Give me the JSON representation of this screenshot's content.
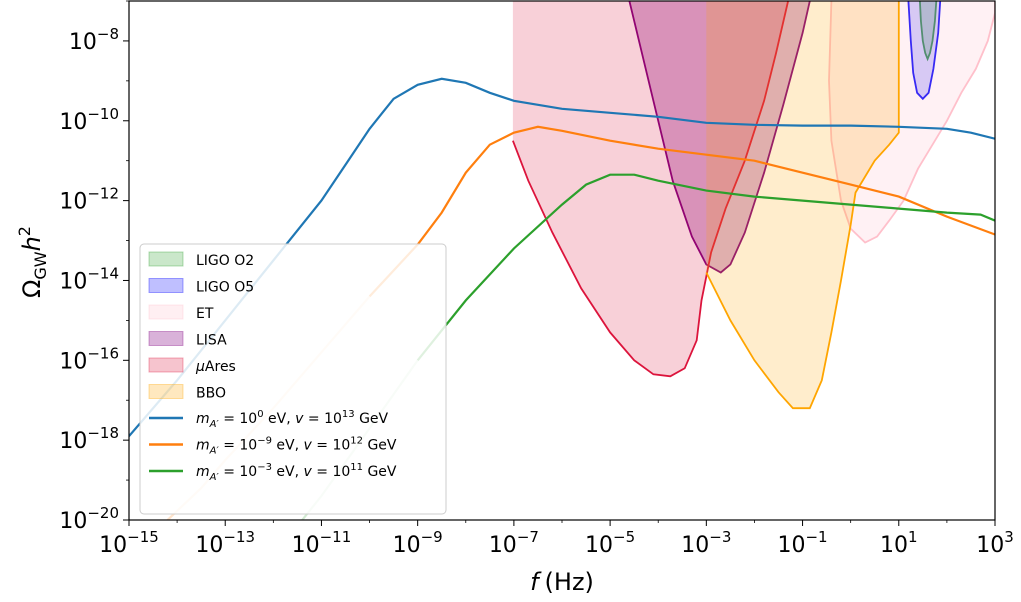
{
  "chart_data": {
    "type": "area",
    "xlabel": "f (Hz)",
    "xlabel_var": "f",
    "xlabel_unit": "(Hz)",
    "ylabel": "ΩGW h^2",
    "xscale": "log",
    "yscale": "log",
    "xlim": [
      1e-15,
      1000
    ],
    "ylim": [
      1e-20,
      1e-07
    ],
    "xticks": [
      {
        "base": "10",
        "exp": "−15",
        "value": -15
      },
      {
        "base": "10",
        "exp": "−13",
        "value": -13
      },
      {
        "base": "10",
        "exp": "−11",
        "value": -11
      },
      {
        "base": "10",
        "exp": "−9",
        "value": -9
      },
      {
        "base": "10",
        "exp": "−7",
        "value": -7
      },
      {
        "base": "10",
        "exp": "−5",
        "value": -5
      },
      {
        "base": "10",
        "exp": "−3",
        "value": -3
      },
      {
        "base": "10",
        "exp": "−1",
        "value": -1
      },
      {
        "base": "10",
        "exp": "1",
        "value": 1
      },
      {
        "base": "10",
        "exp": "3",
        "value": 3
      }
    ],
    "yticks": [
      {
        "base": "10",
        "exp": "−8",
        "value": -8
      },
      {
        "base": "10",
        "exp": "−10",
        "value": -10
      },
      {
        "base": "10",
        "exp": "−12",
        "value": -12
      },
      {
        "base": "10",
        "exp": "−14",
        "value": -14
      },
      {
        "base": "10",
        "exp": "−16",
        "value": -16
      },
      {
        "base": "10",
        "exp": "−18",
        "value": -18
      },
      {
        "base": "10",
        "exp": "−20",
        "value": -20
      }
    ],
    "legend_position": "lower-left",
    "grid": false,
    "sensitivity_curves": [
      {
        "name": "LIGO O2",
        "color": "#2ca02c",
        "log_points": [
          [
            1.44,
            -7
          ],
          [
            1.46,
            -7.5
          ],
          [
            1.5,
            -8
          ],
          [
            1.55,
            -8.3
          ],
          [
            1.6,
            -8.45
          ],
          [
            1.65,
            -8.3
          ],
          [
            1.7,
            -8
          ],
          [
            1.75,
            -7.5
          ],
          [
            1.78,
            -7
          ]
        ]
      },
      {
        "name": "LIGO O5",
        "color": "#0000ff",
        "log_points": [
          [
            1.2,
            -7
          ],
          [
            1.25,
            -8
          ],
          [
            1.3,
            -8.8
          ],
          [
            1.38,
            -9.3
          ],
          [
            1.5,
            -9.45
          ],
          [
            1.62,
            -9.3
          ],
          [
            1.72,
            -8.7
          ],
          [
            1.82,
            -7.8
          ],
          [
            1.86,
            -7
          ]
        ]
      },
      {
        "name": "ET",
        "color": "#ffc0cb",
        "log_points": [
          [
            -0.4,
            -7
          ],
          [
            -0.45,
            -9
          ],
          [
            -0.4,
            -10.5
          ],
          [
            -0.2,
            -12
          ],
          [
            0,
            -12.7
          ],
          [
            0.3,
            -13.05
          ],
          [
            0.55,
            -12.9
          ],
          [
            0.8,
            -12.5
          ],
          [
            1.1,
            -12
          ],
          [
            1.4,
            -11.2
          ],
          [
            1.7,
            -10.6
          ],
          [
            2,
            -10
          ],
          [
            2.3,
            -9.3
          ],
          [
            2.6,
            -8.7
          ],
          [
            2.85,
            -8
          ],
          [
            3,
            -7.3
          ],
          [
            3,
            -7
          ]
        ]
      },
      {
        "name": "LISA",
        "color": "#800080",
        "log_points": [
          [
            -4.6,
            -7
          ],
          [
            -4.4,
            -8
          ],
          [
            -4.1,
            -9.5
          ],
          [
            -3.7,
            -11.5
          ],
          [
            -3.3,
            -12.9
          ],
          [
            -3.0,
            -13.6
          ],
          [
            -2.7,
            -13.8
          ],
          [
            -2.5,
            -13.6
          ],
          [
            -2.2,
            -12.8
          ],
          [
            -1.8,
            -11.3
          ],
          [
            -1.4,
            -9.6
          ],
          [
            -1.0,
            -7.8
          ],
          [
            -0.85,
            -7
          ]
        ]
      },
      {
        "name": "μAres",
        "color": "#dc143c",
        "log_points": [
          [
            -7.02,
            -10.5
          ],
          [
            -6.7,
            -11.5
          ],
          [
            -6.2,
            -12.8
          ],
          [
            -5.6,
            -14.2
          ],
          [
            -5.0,
            -15.3
          ],
          [
            -4.5,
            -16.0
          ],
          [
            -4.1,
            -16.35
          ],
          [
            -3.75,
            -16.4
          ],
          [
            -3.45,
            -16.2
          ],
          [
            -3.2,
            -15.5
          ],
          [
            -3.1,
            -14.5
          ],
          [
            -2.9,
            -13.3
          ],
          [
            -2.6,
            -12.2
          ],
          [
            -2.2,
            -11.0
          ],
          [
            -1.8,
            -9.5
          ],
          [
            -1.55,
            -8.3
          ],
          [
            -1.3,
            -7
          ]
        ]
      },
      {
        "name": "BBO",
        "color": "#ffa500",
        "log_points": [
          [
            -3.0,
            -13.8
          ],
          [
            -2.5,
            -15.0
          ],
          [
            -2.0,
            -16.0
          ],
          [
            -1.5,
            -16.8
          ],
          [
            -1.2,
            -17.2
          ],
          [
            -0.85,
            -17.2
          ],
          [
            -0.6,
            -16.5
          ],
          [
            -0.4,
            -15.3
          ],
          [
            -0.2,
            -14.0
          ],
          [
            0.0,
            -12.6
          ],
          [
            0.1,
            -11.8
          ],
          [
            0.5,
            -11.0
          ],
          [
            0.8,
            -10.6
          ],
          [
            1.0,
            -10.3
          ],
          [
            1.0,
            -7
          ]
        ]
      }
    ],
    "series": [
      {
        "name": "m_A' = 10^0 eV, v = 10^13 GeV",
        "color": "#1f77b4",
        "m_exp": "0",
        "v_exp": "13",
        "log_points": [
          [
            -15,
            -17.9
          ],
          [
            -14,
            -16.5
          ],
          [
            -13,
            -15.0
          ],
          [
            -12,
            -13.5
          ],
          [
            -11,
            -12.0
          ],
          [
            -10.5,
            -11.1
          ],
          [
            -10,
            -10.2
          ],
          [
            -9.5,
            -9.45
          ],
          [
            -9,
            -9.1
          ],
          [
            -8.5,
            -8.95
          ],
          [
            -8,
            -9.05
          ],
          [
            -7.5,
            -9.3
          ],
          [
            -7,
            -9.5
          ],
          [
            -6,
            -9.7
          ],
          [
            -5,
            -9.8
          ],
          [
            -4,
            -9.9
          ],
          [
            -3,
            -10.05
          ],
          [
            -2,
            -10.1
          ],
          [
            -1,
            -10.12
          ],
          [
            0,
            -10.12
          ],
          [
            1,
            -10.15
          ],
          [
            2,
            -10.2
          ],
          [
            2.5,
            -10.3
          ],
          [
            3,
            -10.45
          ]
        ]
      },
      {
        "name": "m_A' = 10^−9 eV, v = 10^12 GeV",
        "color": "#ff7f0e",
        "m_exp": "−9",
        "v_exp": "12",
        "log_points": [
          [
            -14.2,
            -20
          ],
          [
            -13.5,
            -19.2
          ],
          [
            -13,
            -18.5
          ],
          [
            -12,
            -17.2
          ],
          [
            -11,
            -15.8
          ],
          [
            -10,
            -14.4
          ],
          [
            -9,
            -13.1
          ],
          [
            -8.5,
            -12.3
          ],
          [
            -8,
            -11.3
          ],
          [
            -7.5,
            -10.6
          ],
          [
            -7,
            -10.3
          ],
          [
            -6.5,
            -10.15
          ],
          [
            -6,
            -10.25
          ],
          [
            -5,
            -10.5
          ],
          [
            -4,
            -10.7
          ],
          [
            -3,
            -10.85
          ],
          [
            -2,
            -11.0
          ],
          [
            -1,
            -11.3
          ],
          [
            0,
            -11.6
          ],
          [
            1,
            -11.9
          ],
          [
            2,
            -12.4
          ],
          [
            3,
            -12.85
          ]
        ]
      },
      {
        "name": "m_A' = 10^−3 eV, v = 10^11 GeV",
        "color": "#2ca02c",
        "m_exp": "−3",
        "v_exp": "11",
        "log_points": [
          [
            -11.4,
            -20
          ],
          [
            -11,
            -19.4
          ],
          [
            -10,
            -17.7
          ],
          [
            -9,
            -16.0
          ],
          [
            -8,
            -14.5
          ],
          [
            -7,
            -13.2
          ],
          [
            -6,
            -12.1
          ],
          [
            -5.5,
            -11.6
          ],
          [
            -5,
            -11.35
          ],
          [
            -4.5,
            -11.35
          ],
          [
            -4,
            -11.5
          ],
          [
            -3,
            -11.75
          ],
          [
            -2,
            -11.9
          ],
          [
            -1,
            -12.0
          ],
          [
            0,
            -12.1
          ],
          [
            1,
            -12.2
          ],
          [
            2,
            -12.3
          ],
          [
            2.7,
            -12.35
          ],
          [
            3,
            -12.5
          ]
        ]
      }
    ]
  }
}
